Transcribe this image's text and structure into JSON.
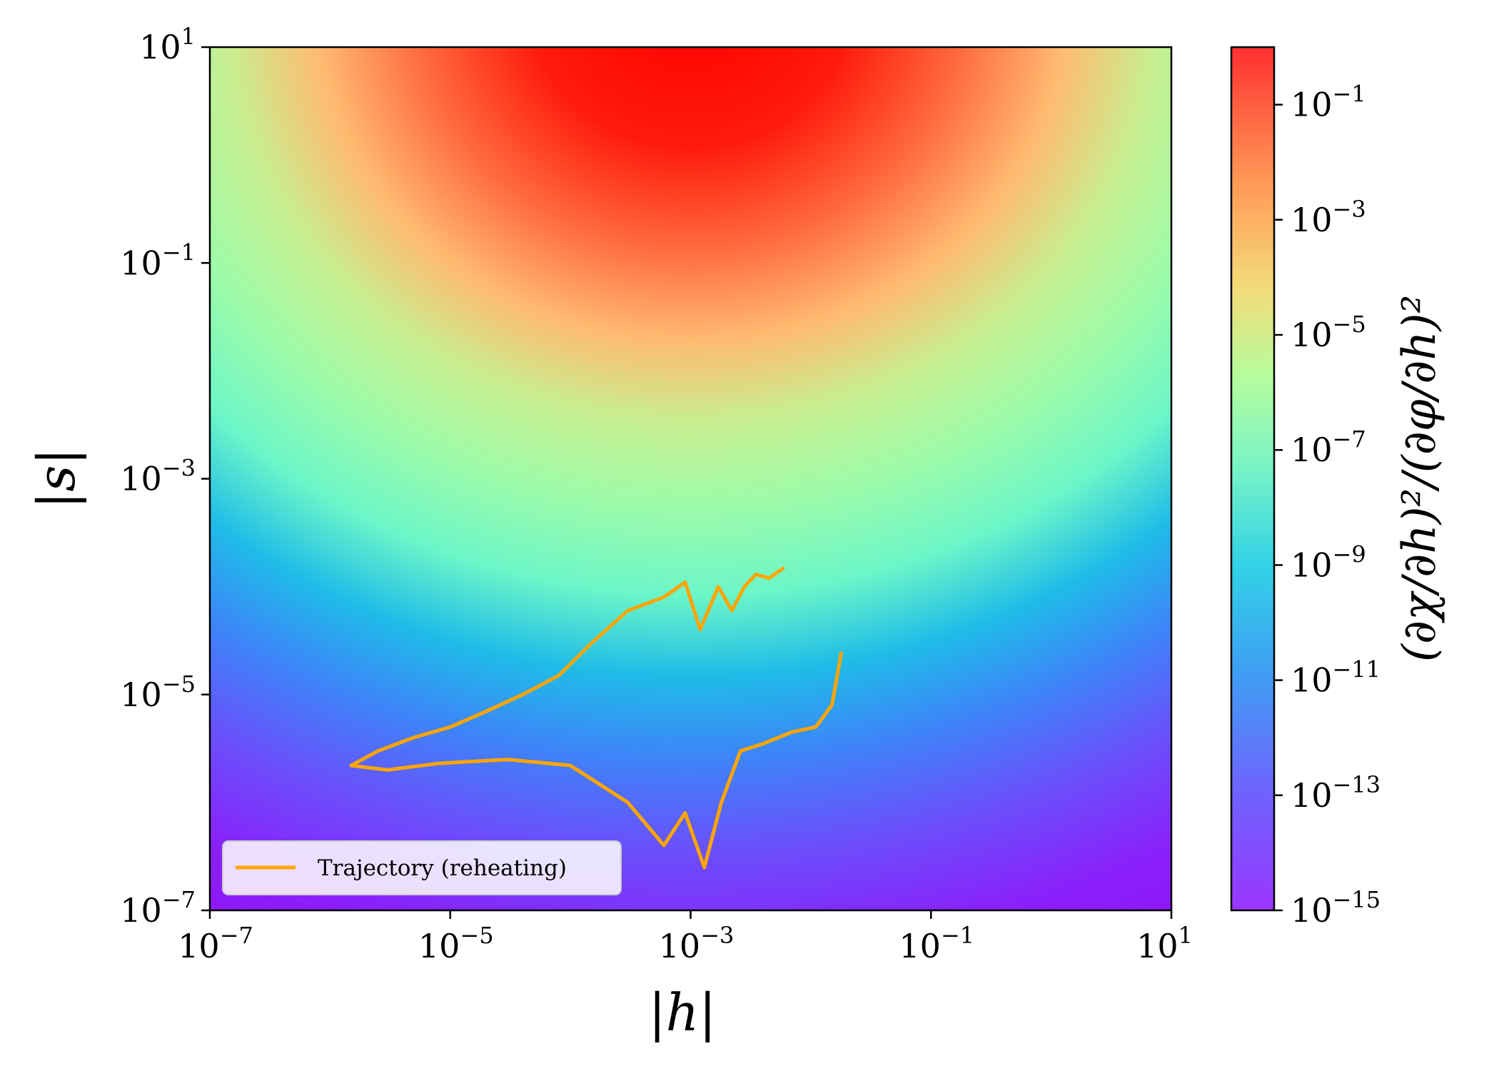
{
  "chart_data": {
    "type": "heatmap",
    "xlabel": "|h|",
    "ylabel": "|s|",
    "colorbar_label": "(∂χ/∂h)²/(∂φ/∂h)²",
    "x_scale": "log",
    "y_scale": "log",
    "xlim": [
      1e-07,
      10
    ],
    "ylim": [
      1e-07,
      10
    ],
    "x_ticks": [
      {
        "base": "10",
        "exp": "−7",
        "value": 1e-07
      },
      {
        "base": "10",
        "exp": "−5",
        "value": 1e-05
      },
      {
        "base": "10",
        "exp": "−3",
        "value": 0.001
      },
      {
        "base": "10",
        "exp": "−1",
        "value": 0.1
      },
      {
        "base": "10",
        "exp": "1",
        "value": 10
      }
    ],
    "y_ticks": [
      {
        "base": "10",
        "exp": "−7",
        "value": 1e-07
      },
      {
        "base": "10",
        "exp": "−5",
        "value": 1e-05
      },
      {
        "base": "10",
        "exp": "−3",
        "value": 0.001
      },
      {
        "base": "10",
        "exp": "−1",
        "value": 0.1
      },
      {
        "base": "10",
        "exp": "1",
        "value": 10
      }
    ],
    "colorbar": {
      "scale": "log",
      "range": [
        1e-15,
        1
      ],
      "colormap": "rainbow",
      "ticks": [
        {
          "base": "10",
          "exp": "−15",
          "value": 1e-15
        },
        {
          "base": "10",
          "exp": "−13",
          "value": 1e-13
        },
        {
          "base": "10",
          "exp": "−11",
          "value": 1e-11
        },
        {
          "base": "10",
          "exp": "−9",
          "value": 1e-09
        },
        {
          "base": "10",
          "exp": "−7",
          "value": 1e-07
        },
        {
          "base": "10",
          "exp": "−5",
          "value": 1e-05
        },
        {
          "base": "10",
          "exp": "−3",
          "value": 0.001
        },
        {
          "base": "10",
          "exp": "−1",
          "value": 0.1
        }
      ]
    },
    "series": [
      {
        "name": "Trajectory (reheating)",
        "color": "#ffa500",
        "x": [
          0.006,
          0.0045,
          0.0035,
          0.0028,
          0.0022,
          0.0017,
          0.0012,
          0.0009,
          0.0006,
          0.0003,
          0.00015,
          8e-05,
          4e-05,
          2e-05,
          1e-05,
          5e-06,
          2.5e-06,
          1.5e-06,
          3e-06,
          8e-06,
          3e-05,
          0.0001,
          0.0003,
          0.0006,
          0.0009,
          0.0013,
          0.0018,
          0.0026,
          0.004,
          0.007,
          0.011,
          0.015,
          0.018
        ],
        "y": [
          0.00015,
          0.00012,
          0.00013,
          0.0001,
          6e-05,
          0.0001,
          4e-05,
          0.00011,
          8e-05,
          6e-05,
          3e-05,
          1.5e-05,
          1e-05,
          7e-06,
          5e-06,
          4e-06,
          3e-06,
          2.2e-06,
          2e-06,
          2.3e-06,
          2.5e-06,
          2.2e-06,
          1e-06,
          4e-07,
          8e-07,
          2.5e-07,
          1e-06,
          3e-06,
          3.5e-06,
          4.5e-06,
          5e-06,
          8e-06,
          2.5e-05
        ]
      }
    ],
    "legend": {
      "position": "lower-left",
      "label": "Trajectory (reheating)"
    }
  }
}
